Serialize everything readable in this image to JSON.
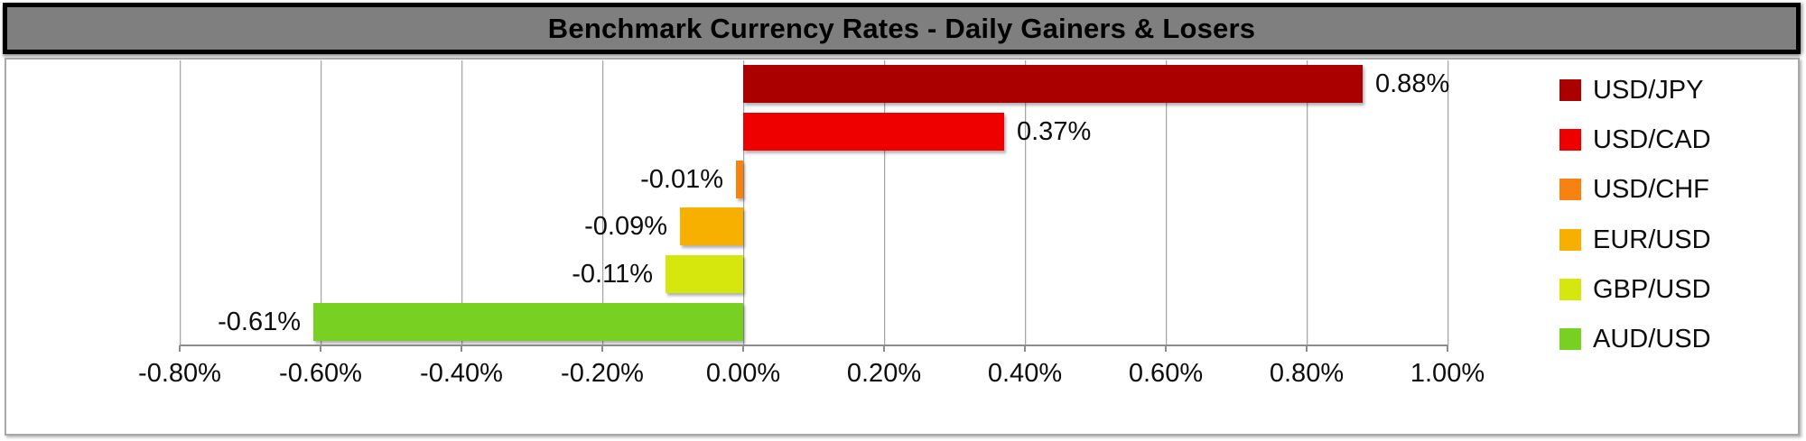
{
  "title": "Benchmark Currency Rates - Daily Gainers & Losers",
  "colors": {
    "title_band_fill": "#7f7f7f",
    "title_band_border": "#000000",
    "chart_border": "#a8a8a8",
    "gridline": "#a6a6a6",
    "axis_line": "#8c8c8c",
    "text": "#0d0d0d",
    "background": "#ffffff"
  },
  "chart_data": {
    "type": "bar",
    "orientation": "horizontal",
    "title": "Benchmark Currency Rates - Daily Gainers & Losers",
    "xlabel": "",
    "ylabel": "",
    "categories": [
      "USD/JPY",
      "USD/CAD",
      "USD/CHF",
      "EUR/USD",
      "GBP/USD",
      "AUD/USD"
    ],
    "values": [
      0.88,
      0.37,
      -0.01,
      -0.09,
      -0.11,
      -0.61
    ],
    "value_labels": [
      "0.88%",
      "0.37%",
      "-0.01%",
      "-0.09%",
      "-0.11%",
      "-0.61%"
    ],
    "bar_colors": [
      "#aa0000",
      "#ee0000",
      "#f68212",
      "#f8b000",
      "#d6e70d",
      "#78d023"
    ],
    "xlim": [
      -0.8,
      1.0
    ],
    "x_tick_values": [
      -0.8,
      -0.6,
      -0.4,
      -0.2,
      0.0,
      0.2,
      0.4,
      0.6,
      0.8,
      1.0
    ],
    "x_tick_labels": [
      "-0.80%",
      "-0.60%",
      "-0.40%",
      "-0.20%",
      "0.00%",
      "0.20%",
      "0.40%",
      "0.60%",
      "0.80%",
      "1.00%"
    ],
    "grid": true,
    "legend_position": "right",
    "legend": [
      {
        "label": "USD/JPY",
        "color": "#aa0000"
      },
      {
        "label": "USD/CAD",
        "color": "#ee0000"
      },
      {
        "label": "USD/CHF",
        "color": "#f68212"
      },
      {
        "label": "EUR/USD",
        "color": "#f8b000"
      },
      {
        "label": "GBP/USD",
        "color": "#d6e70d"
      },
      {
        "label": "AUD/USD",
        "color": "#78d023"
      }
    ]
  }
}
